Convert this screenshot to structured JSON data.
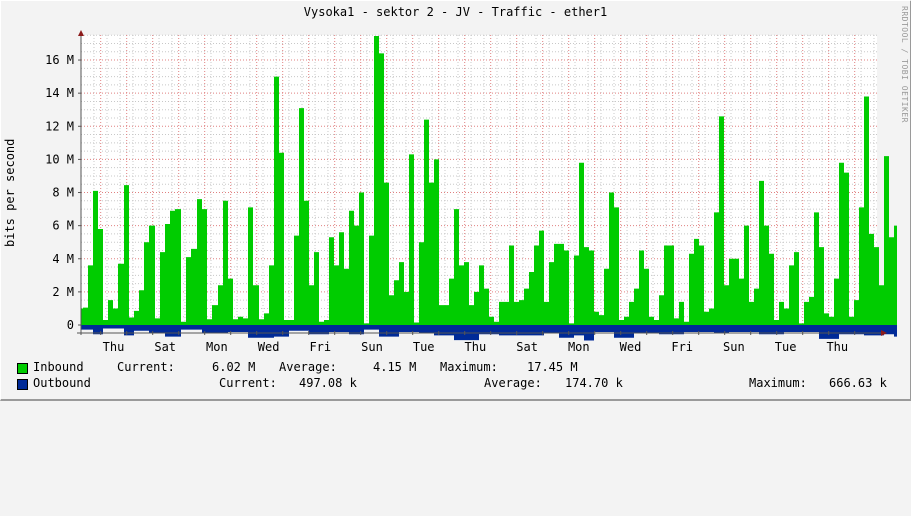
{
  "title": "Vysoka1 - sektor 2 - JV - Traffic - ether1",
  "watermark": "RRDTOOL / TOBI OETIKER",
  "colors": {
    "inbound": "#00cc00",
    "outbound": "#002a97",
    "major_grid": "#e08080",
    "minor_grid": "#c8c8c8",
    "axis": "#555555",
    "arrow": "#8b1a1a",
    "plot_bg": "#ffffff",
    "page_bg": "#f3f3f3"
  },
  "legend": {
    "inbound": {
      "label": "Inbound",
      "current_label": "Current:",
      "current": "6.02 M",
      "average_label": "Average:",
      "average": "4.15 M",
      "maximum_label": "Maximum:",
      "maximum": "17.45 M"
    },
    "outbound": {
      "label": "Outbound",
      "current_label": "Current:",
      "current": "497.08 k",
      "average_label": "Average:",
      "average": "174.70 k",
      "maximum_label": "Maximum:",
      "maximum": "666.63 k"
    }
  },
  "chart_data": {
    "type": "area",
    "title": "Vysoka1 - sektor 2 - JV - Traffic - ether1",
    "xlabel": "",
    "ylabel": "bits per second",
    "ylim": [
      0,
      17500000
    ],
    "yticks": [
      {
        "value": 0,
        "label": "0"
      },
      {
        "value": 2000000,
        "label": "2 M"
      },
      {
        "value": 4000000,
        "label": "4 M"
      },
      {
        "value": 6000000,
        "label": "6 M"
      },
      {
        "value": 8000000,
        "label": "8 M"
      },
      {
        "value": 10000000,
        "label": "10 M"
      },
      {
        "value": 12000000,
        "label": "12 M"
      },
      {
        "value": 14000000,
        "label": "14 M"
      },
      {
        "value": 16000000,
        "label": "16 M"
      }
    ],
    "xticks": [
      "Thu",
      "Sat",
      "Mon",
      "Wed",
      "Fri",
      "Sun",
      "Tue",
      "Thu",
      "Sat",
      "Mon",
      "Wed",
      "Fri",
      "Sun",
      "Tue",
      "Thu"
    ],
    "grid": true,
    "legend_position": "bottom",
    "x_unit": "plot pixel offset (≈2h per 4px sample)",
    "series": [
      {
        "name": "Inbound",
        "unit": "M bits/s",
        "points": [
          [
            0,
            1.0
          ],
          [
            2,
            1.05
          ],
          [
            7,
            3.6
          ],
          [
            12,
            8.1
          ],
          [
            17,
            5.8
          ],
          [
            22,
            0.3
          ],
          [
            27,
            1.5
          ],
          [
            32,
            1.0
          ],
          [
            37,
            3.7
          ],
          [
            43,
            8.45
          ],
          [
            48,
            0.45
          ],
          [
            53,
            0.85
          ],
          [
            58,
            2.1
          ],
          [
            63,
            5.0
          ],
          [
            68,
            6.0
          ],
          [
            74,
            0.4
          ],
          [
            79,
            4.4
          ],
          [
            84,
            6.1
          ],
          [
            89,
            6.9
          ],
          [
            94,
            7.0
          ],
          [
            100,
            0.2
          ],
          [
            105,
            4.1
          ],
          [
            110,
            4.6
          ],
          [
            116,
            7.6
          ],
          [
            121,
            7.0
          ],
          [
            126,
            0.35
          ],
          [
            131,
            1.2
          ],
          [
            137,
            2.4
          ],
          [
            142,
            7.5
          ],
          [
            147,
            2.8
          ],
          [
            152,
            0.35
          ],
          [
            157,
            0.5
          ],
          [
            162,
            0.4
          ],
          [
            167,
            7.1
          ],
          [
            172,
            2.4
          ],
          [
            178,
            0.35
          ],
          [
            183,
            0.7
          ],
          [
            188,
            3.6
          ],
          [
            193,
            15.0
          ],
          [
            198,
            10.4
          ],
          [
            203,
            0.3
          ],
          [
            208,
            0.3
          ],
          [
            213,
            5.4
          ],
          [
            218,
            13.1
          ],
          [
            223,
            7.5
          ],
          [
            228,
            2.4
          ],
          [
            233,
            4.4
          ],
          [
            238,
            0.2
          ],
          [
            243,
            0.3
          ],
          [
            248,
            5.3
          ],
          [
            253,
            3.6
          ],
          [
            258,
            5.6
          ],
          [
            263,
            3.4
          ],
          [
            268,
            6.9
          ],
          [
            273,
            6.0
          ],
          [
            278,
            8.0
          ],
          [
            283,
            0.1
          ],
          [
            288,
            5.4
          ],
          [
            293,
            17.45
          ],
          [
            298,
            16.4
          ],
          [
            303,
            8.6
          ],
          [
            308,
            1.8
          ],
          [
            313,
            2.7
          ],
          [
            318,
            3.8
          ],
          [
            323,
            2.0
          ],
          [
            328,
            10.3
          ],
          [
            333,
            0.15
          ],
          [
            338,
            5.0
          ],
          [
            343,
            12.4
          ],
          [
            348,
            8.6
          ],
          [
            353,
            10.0
          ],
          [
            358,
            1.2
          ],
          [
            363,
            1.2
          ],
          [
            368,
            2.8
          ],
          [
            373,
            7.0
          ],
          [
            378,
            3.6
          ],
          [
            383,
            3.8
          ],
          [
            388,
            1.2
          ],
          [
            393,
            2.0
          ],
          [
            398,
            3.6
          ],
          [
            403,
            2.2
          ],
          [
            408,
            0.5
          ],
          [
            413,
            0.2
          ],
          [
            418,
            1.4
          ],
          [
            423,
            1.4
          ],
          [
            428,
            4.8
          ],
          [
            433,
            1.4
          ],
          [
            438,
            1.5
          ],
          [
            443,
            2.2
          ],
          [
            448,
            3.2
          ],
          [
            453,
            4.8
          ],
          [
            458,
            5.7
          ],
          [
            463,
            1.4
          ],
          [
            468,
            3.8
          ],
          [
            473,
            4.9
          ],
          [
            478,
            4.9
          ],
          [
            483,
            4.5
          ],
          [
            488,
            0.1
          ],
          [
            493,
            4.2
          ],
          [
            498,
            9.8
          ],
          [
            503,
            4.7
          ],
          [
            508,
            4.5
          ],
          [
            513,
            0.8
          ],
          [
            518,
            0.6
          ],
          [
            523,
            3.4
          ],
          [
            528,
            8.0
          ],
          [
            533,
            7.1
          ],
          [
            538,
            0.3
          ],
          [
            543,
            0.5
          ],
          [
            548,
            1.4
          ],
          [
            553,
            2.2
          ],
          [
            558,
            4.5
          ],
          [
            563,
            3.4
          ],
          [
            568,
            0.5
          ],
          [
            573,
            0.3
          ],
          [
            578,
            1.8
          ],
          [
            583,
            4.8
          ],
          [
            588,
            4.8
          ],
          [
            593,
            0.4
          ],
          [
            598,
            1.4
          ],
          [
            603,
            0.2
          ],
          [
            608,
            4.3
          ],
          [
            613,
            5.2
          ],
          [
            618,
            4.8
          ],
          [
            623,
            0.8
          ],
          [
            628,
            1.0
          ],
          [
            633,
            6.8
          ],
          [
            638,
            12.6
          ],
          [
            643,
            2.4
          ],
          [
            648,
            4.0
          ],
          [
            653,
            4.0
          ],
          [
            658,
            2.8
          ],
          [
            663,
            6.0
          ],
          [
            668,
            1.4
          ],
          [
            673,
            2.2
          ],
          [
            678,
            8.7
          ],
          [
            683,
            6.0
          ],
          [
            688,
            4.3
          ],
          [
            693,
            0.3
          ],
          [
            698,
            1.4
          ],
          [
            703,
            1.0
          ],
          [
            708,
            3.6
          ],
          [
            713,
            4.4
          ],
          [
            718,
            0.1
          ],
          [
            723,
            1.4
          ],
          [
            728,
            1.7
          ],
          [
            733,
            6.8
          ],
          [
            738,
            4.7
          ],
          [
            743,
            0.7
          ],
          [
            748,
            0.5
          ],
          [
            753,
            2.8
          ],
          [
            758,
            9.8
          ],
          [
            763,
            9.2
          ],
          [
            768,
            0.5
          ],
          [
            773,
            1.5
          ],
          [
            778,
            7.1
          ],
          [
            783,
            13.8
          ],
          [
            788,
            5.5
          ],
          [
            793,
            4.7
          ],
          [
            798,
            2.4
          ],
          [
            803,
            10.2
          ],
          [
            808,
            5.3
          ],
          [
            813,
            6.0
          ],
          [
            816,
            0
          ]
        ]
      },
      {
        "name": "Outbound",
        "unit": "M bits/s",
        "points": [
          [
            0,
            0.2
          ],
          [
            12,
            0.4
          ],
          [
            22,
            0.15
          ],
          [
            43,
            0.45
          ],
          [
            53,
            0.25
          ],
          [
            68,
            0.35
          ],
          [
            84,
            0.5
          ],
          [
            100,
            0.2
          ],
          [
            121,
            0.35
          ],
          [
            147,
            0.3
          ],
          [
            167,
            0.55
          ],
          [
            193,
            0.5
          ],
          [
            208,
            0.25
          ],
          [
            228,
            0.4
          ],
          [
            248,
            0.3
          ],
          [
            268,
            0.4
          ],
          [
            283,
            0.2
          ],
          [
            298,
            0.5
          ],
          [
            318,
            0.3
          ],
          [
            338,
            0.35
          ],
          [
            353,
            0.45
          ],
          [
            373,
            0.65
          ],
          [
            398,
            0.4
          ],
          [
            418,
            0.45
          ],
          [
            443,
            0.45
          ],
          [
            463,
            0.35
          ],
          [
            478,
            0.55
          ],
          [
            493,
            0.45
          ],
          [
            503,
            0.666
          ],
          [
            513,
            0.3
          ],
          [
            533,
            0.55
          ],
          [
            553,
            0.35
          ],
          [
            578,
            0.4
          ],
          [
            603,
            0.3
          ],
          [
            633,
            0.35
          ],
          [
            648,
            0.3
          ],
          [
            678,
            0.4
          ],
          [
            703,
            0.3
          ],
          [
            723,
            0.3
          ],
          [
            738,
            0.6
          ],
          [
            758,
            0.4
          ],
          [
            783,
            0.45
          ],
          [
            803,
            0.4
          ],
          [
            813,
            0.5
          ],
          [
            816,
            0
          ]
        ]
      }
    ]
  }
}
